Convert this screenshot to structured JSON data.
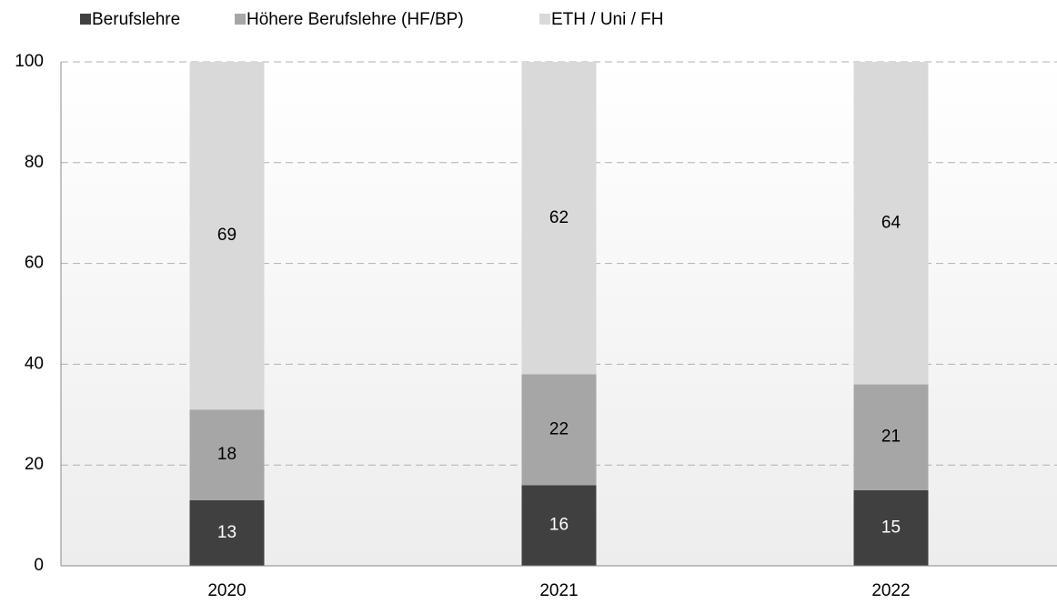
{
  "chart_data": {
    "type": "stacked_bar",
    "categories": [
      "2020",
      "2021",
      "2022"
    ],
    "series": [
      {
        "name": "Berufslehre",
        "color": "#404040",
        "values": [
          13,
          16,
          15
        ]
      },
      {
        "name": "Höhere Berufslehre (HF/BP)",
        "color": "#a6a6a6",
        "values": [
          18,
          22,
          21
        ]
      },
      {
        "name": "ETH / Uni / FH",
        "color": "#d9d9d9",
        "values": [
          69,
          62,
          64
        ]
      }
    ],
    "ylim": [
      0,
      100
    ],
    "yticks": [
      0,
      20,
      40,
      60,
      80,
      100
    ],
    "grid": true,
    "legend": "top"
  }
}
